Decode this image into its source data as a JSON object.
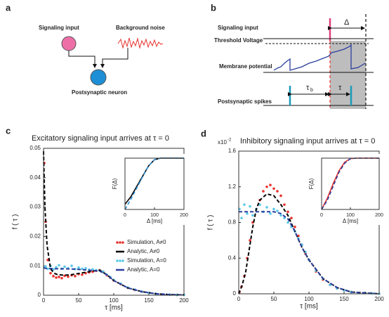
{
  "panels": {
    "a": {
      "label": "a",
      "signaling_input": "Signaling input",
      "background_noise": "Background noise",
      "postsynaptic_neuron": "Postsynaptic neuron"
    },
    "b": {
      "label": "b",
      "signaling_input": "Signaling input",
      "delta": "Δ",
      "threshold_voltage": "Threshold Voltage",
      "membrane_potential": "Membrane potential",
      "postsynaptic_spikes": "Postsynaptic spikes",
      "tau_b": "τ",
      "tau_b_sub": "b",
      "tau": "τ"
    }
  },
  "chart_data": [
    {
      "type": "line",
      "panel_label": "c",
      "title": "Excitatory signaling input arrives at τ = 0",
      "xlabel": "τ [ms]",
      "ylabel": "f ( τ )",
      "xlim": [
        0,
        200
      ],
      "ylim": [
        0,
        0.05
      ],
      "xticks": [
        0,
        50,
        100,
        150,
        200
      ],
      "yticks": [
        0,
        0.01,
        0.02,
        0.03,
        0.04,
        0.05
      ],
      "series": [
        {
          "name": "Simulation, A≠0",
          "color": "#e8322e",
          "style": "scatter",
          "x": [
            1,
            3,
            6,
            10,
            14,
            18,
            22,
            26,
            30,
            35,
            40,
            45,
            50,
            55,
            60,
            65,
            70,
            75,
            80,
            85,
            90,
            95,
            100,
            110,
            120,
            130,
            140,
            150,
            160,
            170,
            180,
            190,
            200
          ],
          "values": [
            0.045,
            0.025,
            0.012,
            0.0075,
            0.0065,
            0.006,
            0.0062,
            0.0058,
            0.0066,
            0.0063,
            0.0068,
            0.0065,
            0.0072,
            0.007,
            0.0075,
            0.0078,
            0.008,
            0.0083,
            0.0085,
            0.008,
            0.0068,
            0.006,
            0.005,
            0.0038,
            0.0025,
            0.0018,
            0.0012,
            0.0008,
            0.0005,
            0.0003,
            0.0002,
            0.0001,
            0.0001
          ]
        },
        {
          "name": "Analytic, A≠0",
          "color": "#000000",
          "style": "dashed",
          "x": [
            0,
            2,
            5,
            10,
            15,
            20,
            30,
            40,
            50,
            60,
            70,
            80,
            90,
            100,
            120,
            140,
            160,
            180,
            200
          ],
          "values": [
            0.049,
            0.03,
            0.017,
            0.009,
            0.0075,
            0.007,
            0.0068,
            0.007,
            0.0074,
            0.0078,
            0.0082,
            0.0085,
            0.007,
            0.005,
            0.0025,
            0.0012,
            0.0005,
            0.0002,
            0.0001
          ]
        },
        {
          "name": "Simulation, A=0",
          "color": "#5bc8e8",
          "style": "scatter",
          "x": [
            1,
            3,
            6,
            10,
            14,
            18,
            22,
            26,
            30,
            35,
            40,
            45,
            50,
            55,
            60,
            65,
            70,
            75,
            80,
            85,
            90,
            95,
            100,
            110,
            120,
            130,
            140,
            150,
            160,
            170,
            180,
            190,
            200
          ],
          "values": [
            0.0095,
            0.0098,
            0.009,
            0.01,
            0.0088,
            0.0095,
            0.0102,
            0.009,
            0.0097,
            0.0092,
            0.01,
            0.0089,
            0.0094,
            0.009,
            0.0092,
            0.0087,
            0.0088,
            0.0085,
            0.0084,
            0.008,
            0.007,
            0.0062,
            0.0052,
            0.0039,
            0.0026,
            0.0019,
            0.0012,
            0.0008,
            0.0005,
            0.0003,
            0.0002,
            0.0001,
            0.0001
          ]
        },
        {
          "name": "Analytic, A=0",
          "color": "#2b3f9e",
          "style": "dashed",
          "x": [
            0,
            2,
            5,
            10,
            15,
            20,
            30,
            40,
            50,
            60,
            70,
            80,
            90,
            100,
            120,
            140,
            160,
            180,
            200
          ],
          "values": [
            0.0092,
            0.0092,
            0.0091,
            0.0091,
            0.009,
            0.009,
            0.009,
            0.0089,
            0.0088,
            0.0086,
            0.0084,
            0.0082,
            0.007,
            0.005,
            0.0025,
            0.0012,
            0.0005,
            0.0002,
            0.0001
          ]
        }
      ]
    },
    {
      "type": "line",
      "xlabel": "Δ [ms]",
      "ylabel": "F(Δ)",
      "xlim": [
        0,
        200
      ],
      "ylim": [
        0,
        1
      ],
      "xticks": [
        0,
        100,
        200
      ],
      "series": [
        {
          "color": "#000000",
          "style": "solid",
          "x": [
            0,
            20,
            40,
            60,
            80,
            100,
            120,
            140,
            200
          ],
          "values": [
            0.1,
            0.25,
            0.45,
            0.65,
            0.85,
            0.97,
            1,
            1,
            1
          ]
        },
        {
          "color": "#2b8fd8",
          "style": "dashed",
          "x": [
            0,
            20,
            40,
            60,
            80,
            100,
            120,
            140,
            200
          ],
          "values": [
            0,
            0.2,
            0.42,
            0.64,
            0.85,
            0.97,
            1,
            1,
            1
          ]
        }
      ]
    },
    {
      "type": "line",
      "panel_label": "d",
      "title": "Inhibitory signaling input arrives at τ = 0",
      "y_multiplier": "x10",
      "y_multiplier_exp": "-2",
      "xlabel": "τ [ms]",
      "ylabel": "f ( τ )",
      "xlim": [
        0,
        200
      ],
      "ylim": [
        0,
        1.6
      ],
      "xticks": [
        0,
        50,
        100,
        150,
        200
      ],
      "yticks": [
        0,
        0.4,
        0.8,
        1.2,
        1.6
      ],
      "series": [
        {
          "color": "#e8322e",
          "style": "scatter",
          "x": [
            1,
            4,
            8,
            12,
            16,
            20,
            25,
            30,
            35,
            40,
            45,
            50,
            55,
            60,
            65,
            70,
            75,
            80,
            85,
            90,
            95,
            100,
            110,
            120,
            130,
            140,
            150,
            160,
            170,
            180,
            190,
            200
          ],
          "values": [
            0.02,
            0.08,
            0.2,
            0.4,
            0.6,
            0.8,
            0.95,
            1.05,
            1.15,
            1.2,
            1.22,
            1.18,
            1.15,
            1.1,
            1.0,
            0.92,
            0.85,
            0.75,
            0.65,
            0.55,
            0.45,
            0.38,
            0.25,
            0.16,
            0.1,
            0.06,
            0.04,
            0.02,
            0.01,
            0.01,
            0.005,
            0
          ]
        },
        {
          "color": "#5bc8e8",
          "style": "scatter",
          "x": [
            1,
            4,
            8,
            12,
            16,
            20,
            25,
            30,
            35,
            40,
            45,
            50,
            55,
            60,
            65,
            70,
            75,
            80,
            85,
            90,
            95,
            100,
            110,
            120,
            130,
            140,
            150,
            160,
            170,
            180,
            190,
            200
          ],
          "values": [
            0.95,
            0.85,
            1.0,
            0.9,
            0.98,
            0.88,
            0.95,
            1.0,
            0.92,
            0.97,
            0.9,
            0.95,
            0.93,
            0.88,
            0.85,
            0.8,
            0.75,
            0.7,
            0.62,
            0.55,
            0.47,
            0.38,
            0.26,
            0.17,
            0.1,
            0.06,
            0.04,
            0.02,
            0.01,
            0.01,
            0.005,
            0
          ]
        },
        {
          "color": "#000000",
          "style": "dashed",
          "x": [
            0,
            5,
            10,
            15,
            20,
            25,
            30,
            40,
            50,
            60,
            70,
            80,
            90,
            100,
            120,
            140,
            160,
            180,
            200
          ],
          "values": [
            0,
            0.1,
            0.25,
            0.5,
            0.75,
            0.95,
            1.05,
            1.12,
            1.1,
            1.0,
            0.88,
            0.7,
            0.52,
            0.38,
            0.17,
            0.07,
            0.02,
            0.01,
            0
          ]
        },
        {
          "color": "#2b3f9e",
          "style": "dashed",
          "x": [
            0,
            5,
            10,
            15,
            20,
            25,
            30,
            40,
            50,
            60,
            70,
            80,
            90,
            100,
            120,
            140,
            160,
            180,
            200
          ],
          "values": [
            0.92,
            0.92,
            0.92,
            0.92,
            0.92,
            0.92,
            0.92,
            0.92,
            0.92,
            0.9,
            0.84,
            0.7,
            0.52,
            0.38,
            0.17,
            0.07,
            0.02,
            0.01,
            0
          ]
        }
      ]
    },
    {
      "type": "line",
      "xlabel": "Δ [ms]",
      "ylabel": "F(Δ)",
      "xlim": [
        0,
        200
      ],
      "ylim": [
        0,
        1
      ],
      "xticks": [
        0,
        100,
        200
      ],
      "series": [
        {
          "color": "#e8322e",
          "style": "solid",
          "x": [
            0,
            20,
            40,
            60,
            80,
            100,
            120,
            140,
            200
          ],
          "values": [
            0,
            0.22,
            0.5,
            0.75,
            0.92,
            0.99,
            1,
            1,
            1
          ]
        },
        {
          "color": "#2b3f9e",
          "style": "dashed",
          "x": [
            0,
            20,
            40,
            60,
            80,
            100,
            120,
            140,
            200
          ],
          "values": [
            0,
            0.18,
            0.45,
            0.72,
            0.9,
            0.99,
            1,
            1,
            1
          ]
        }
      ]
    }
  ]
}
